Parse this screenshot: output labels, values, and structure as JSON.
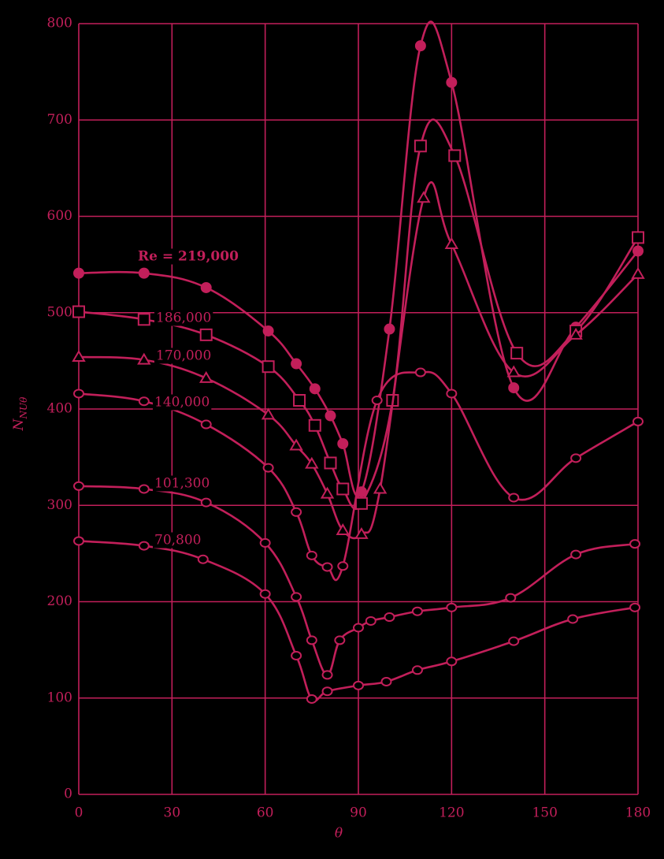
{
  "chart_data": {
    "type": "line",
    "xlabel": "θ",
    "ylabel": "N",
    "ylabel_sub": "NUθ",
    "color": "#c21f5a",
    "grid": true,
    "xlim": [
      0,
      180
    ],
    "xticks": [
      0,
      30,
      60,
      90,
      120,
      150,
      180
    ],
    "ylim": [
      0,
      800
    ],
    "yticks": [
      0,
      100,
      200,
      300,
      400,
      500,
      600,
      700,
      800
    ],
    "series": [
      {
        "name": "Re = 219,000",
        "marker": "filled-circle",
        "color": "#c21f5a",
        "x": [
          0,
          21,
          41,
          61,
          70,
          76,
          81,
          85,
          91,
          100,
          110,
          120,
          140,
          160,
          180
        ],
        "values": [
          541,
          541,
          526,
          481,
          447,
          421,
          393,
          364,
          314,
          483,
          777,
          739,
          422,
          485,
          564
        ]
      },
      {
        "name": "186,000",
        "marker": "square",
        "color": "#c21f5a",
        "x": [
          0,
          21,
          41,
          61,
          71,
          76,
          81,
          85,
          91,
          101,
          110,
          121,
          141,
          160,
          180
        ],
        "values": [
          501,
          493,
          477,
          444,
          409,
          383,
          344,
          317,
          302,
          409,
          673,
          663,
          458,
          481,
          578
        ]
      },
      {
        "name": "170,000",
        "marker": "triangle",
        "color": "#c21f5a",
        "x": [
          0,
          21,
          41,
          61,
          70,
          75,
          80,
          85,
          91,
          97,
          111,
          120,
          140,
          160,
          180
        ],
        "values": [
          454,
          451,
          432,
          394,
          362,
          343,
          312,
          274,
          270,
          317,
          619,
          571,
          438,
          477,
          540
        ]
      },
      {
        "name": "140,000",
        "marker": "circle",
        "color": "#c21f5a",
        "x": [
          0,
          21,
          41,
          61,
          70,
          75,
          80,
          85,
          96,
          110,
          120,
          140,
          160,
          180
        ],
        "values": [
          416,
          408,
          384,
          339,
          293,
          248,
          236,
          237,
          409,
          438,
          416,
          308,
          349,
          387
        ]
      },
      {
        "name": "101,300",
        "marker": "circle",
        "color": "#c21f5a",
        "x": [
          0,
          21,
          41,
          60,
          70,
          75,
          80,
          84,
          90,
          94,
          100,
          109,
          120,
          139,
          160,
          179
        ],
        "values": [
          320,
          317,
          303,
          261,
          205,
          160,
          124,
          160,
          173,
          180,
          184,
          190,
          194,
          204,
          249,
          260
        ]
      },
      {
        "name": "70,800",
        "marker": "circle",
        "color": "#c21f5a",
        "x": [
          0,
          21,
          40,
          60,
          70,
          75,
          80,
          90,
          99,
          109,
          120,
          140,
          159,
          179
        ],
        "values": [
          263,
          258,
          244,
          208,
          144,
          99,
          107,
          113,
          117,
          129,
          138,
          159,
          182,
          194
        ]
      }
    ]
  }
}
